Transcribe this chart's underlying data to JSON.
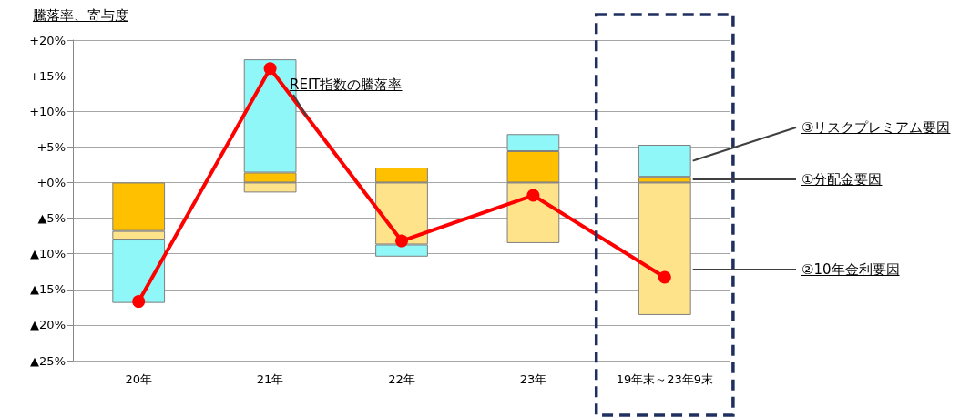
{
  "chart_data": {
    "type": "bar",
    "stacked": true,
    "ylabel": "騰落率、寄与度",
    "categories": [
      "20年",
      "21年",
      "22年",
      "23年",
      "19年末～23年9末"
    ],
    "series": [
      {
        "name": "①分配金要因",
        "color": "#ffc000",
        "values": [
          -6.8,
          1.4,
          2.1,
          4.4,
          0.8
        ]
      },
      {
        "name": "②10年金利要因",
        "color": "#ffe38a",
        "values": [
          -1.2,
          -1.4,
          -8.7,
          -8.5,
          -18.6
        ]
      },
      {
        "name": "③リスクプレミアム要因",
        "color": "#8ff7f7",
        "values": [
          -8.9,
          15.9,
          -1.7,
          2.4,
          4.5
        ]
      },
      {
        "name": "REIT指数の騰落率",
        "type": "line",
        "color": "#ff0000",
        "marker": "circle",
        "values": [
          -16.7,
          16.0,
          -8.2,
          -1.8,
          -13.3
        ]
      }
    ],
    "ylim": [
      -25,
      20
    ],
    "yticks": [
      {
        "value": -25,
        "label": "▲25%"
      },
      {
        "value": -20,
        "label": "▲20%"
      },
      {
        "value": -15,
        "label": "▲15%"
      },
      {
        "value": -10,
        "label": "▲10%"
      },
      {
        "value": -5,
        "label": "▲5%"
      },
      {
        "value": 0,
        "label": "+0%"
      },
      {
        "value": 5,
        "label": "+5%"
      },
      {
        "value": 10,
        "label": "+10%"
      },
      {
        "value": 15,
        "label": "+15%"
      },
      {
        "value": 20,
        "label": "+20%"
      }
    ],
    "grid": "y",
    "legend": false
  }
}
